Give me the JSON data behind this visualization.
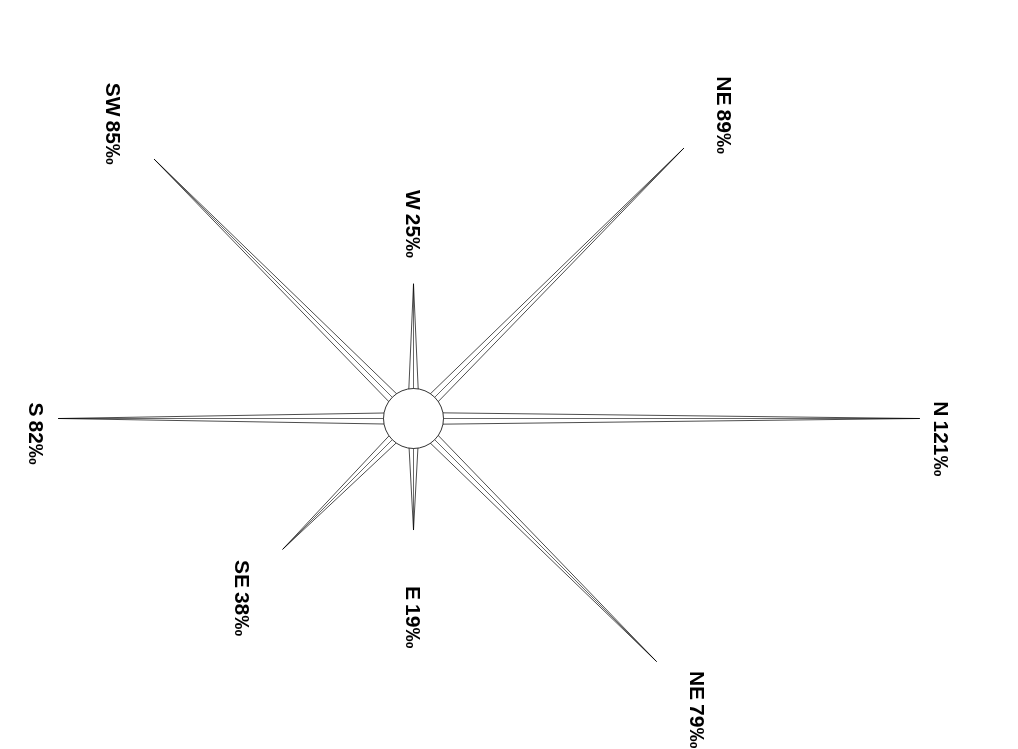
{
  "chart_data": {
    "type": "other",
    "categories": [
      "N",
      "NE",
      "E",
      "SE",
      "S",
      "SW",
      "W",
      "NE"
    ],
    "values": [
      121,
      79,
      19,
      38,
      82,
      85,
      25,
      89
    ],
    "value_labels": [
      "121‰",
      "79‰",
      "19‰",
      "38‰",
      "82‰",
      "85‰",
      "25‰",
      "89‰"
    ]
  }
}
